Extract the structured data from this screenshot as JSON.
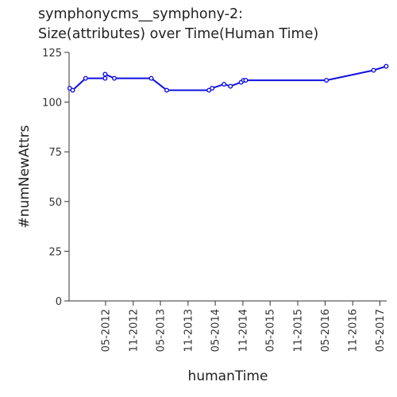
{
  "chart_data": {
    "type": "line",
    "title_lines": [
      "symphonycms__symphony-2:",
      "Size(attributes) over Time(Human Time)"
    ],
    "xlabel": "humanTime",
    "ylabel": "#numNewAttrs",
    "x_ticks": [
      "05-2012",
      "11-2012",
      "05-2013",
      "11-2013",
      "05-2014",
      "11-2014",
      "05-2015",
      "11-2015",
      "05-2016",
      "11-2016",
      "05-2017"
    ],
    "xlim": [
      "2011-09-01",
      "2017-06-15"
    ],
    "ylim": [
      0,
      125
    ],
    "y_ticks": [
      0,
      25,
      50,
      75,
      100,
      125
    ],
    "grid": false,
    "line_color": "#1010e0",
    "series": [
      {
        "points": [
          {
            "x": "2011-09-05",
            "y": 107
          },
          {
            "x": "2011-09-25",
            "y": 106
          },
          {
            "x": "2011-12-20",
            "y": 112
          },
          {
            "x": "2012-04-28",
            "y": 112
          },
          {
            "x": "2012-04-28",
            "y": 114
          },
          {
            "x": "2012-06-28",
            "y": 112
          },
          {
            "x": "2013-03-01",
            "y": 112
          },
          {
            "x": "2013-06-12",
            "y": 106
          },
          {
            "x": "2014-03-20",
            "y": 106
          },
          {
            "x": "2014-04-10",
            "y": 107
          },
          {
            "x": "2014-06-28",
            "y": 109
          },
          {
            "x": "2014-08-10",
            "y": 108
          },
          {
            "x": "2014-10-20",
            "y": 110
          },
          {
            "x": "2014-11-05",
            "y": 111
          },
          {
            "x": "2014-11-20",
            "y": 111
          },
          {
            "x": "2016-05-10",
            "y": 111
          },
          {
            "x": "2017-03-20",
            "y": 116
          },
          {
            "x": "2017-06-12",
            "y": 118
          }
        ]
      }
    ]
  }
}
